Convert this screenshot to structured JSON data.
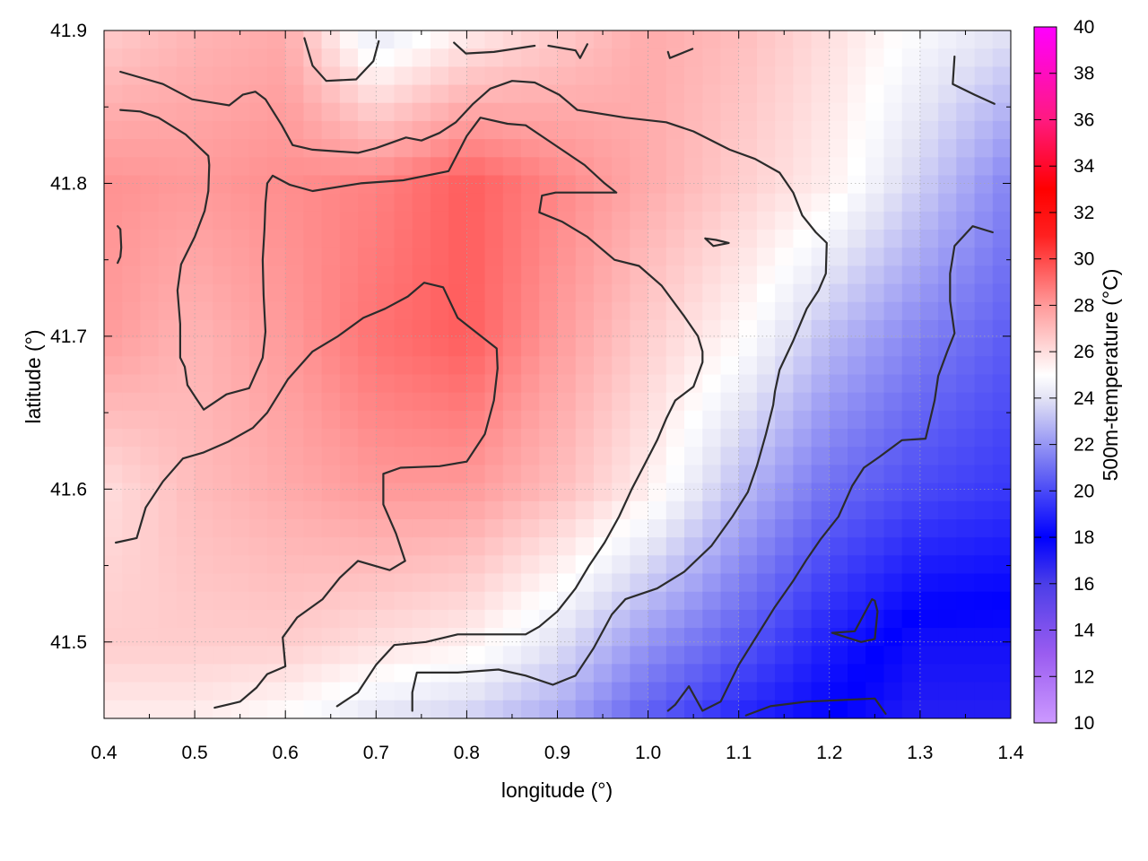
{
  "chart_data": {
    "type": "heatmap",
    "xlabel": "longitude (°)",
    "ylabel": "latitude (°)",
    "colorbar_label": "500m-temperature (°C)",
    "xlim": [
      0.4,
      1.4
    ],
    "ylim": [
      41.45,
      41.9
    ],
    "x_ticks": [
      "0.4",
      "0.5",
      "0.6",
      "0.7",
      "0.8",
      "0.9",
      "1.0",
      "1.1",
      "1.2",
      "1.3",
      "1.4"
    ],
    "y_ticks": [
      "41.5",
      "41.6",
      "41.7",
      "41.8",
      "41.9"
    ],
    "colorbar_range": [
      10,
      40
    ],
    "colorbar_ticks": [
      "10",
      "12",
      "14",
      "16",
      "18",
      "20",
      "22",
      "24",
      "26",
      "28",
      "30",
      "32",
      "34",
      "36",
      "38",
      "40"
    ],
    "colorbar_colors": [
      {
        "value": 10,
        "color": "#cc99ff"
      },
      {
        "value": 13,
        "color": "#9a5cf0"
      },
      {
        "value": 16,
        "color": "#4b3ee8"
      },
      {
        "value": 18,
        "color": "#0000ff"
      },
      {
        "value": 21,
        "color": "#6f6ff3"
      },
      {
        "value": 24,
        "color": "#e3e3f5"
      },
      {
        "value": 25,
        "color": "#ffffff"
      },
      {
        "value": 28,
        "color": "#ff9a9a"
      },
      {
        "value": 31,
        "color": "#ff2020"
      },
      {
        "value": 33,
        "color": "#ff0000"
      },
      {
        "value": 36,
        "color": "#ff1a80"
      },
      {
        "value": 40,
        "color": "#ff00ff"
      }
    ],
    "temperature_grid": {
      "x": [
        0.4,
        0.5,
        0.6,
        0.7,
        0.8,
        0.9,
        1.0,
        1.1,
        1.2,
        1.3,
        1.4
      ],
      "y": [
        41.9,
        41.8,
        41.7,
        41.6,
        41.5,
        41.45
      ],
      "values": [
        [
          26.5,
          27.2,
          27.5,
          24.0,
          25.5,
          26.5,
          27.5,
          27.0,
          26.0,
          24.8,
          24.0
        ],
        [
          28.2,
          28.0,
          28.3,
          28.6,
          29.5,
          28.5,
          27.5,
          26.5,
          25.5,
          23.5,
          21.5
        ],
        [
          28.0,
          27.2,
          28.0,
          29.0,
          29.5,
          28.0,
          26.5,
          25.2,
          23.0,
          21.5,
          20.5
        ],
        [
          26.0,
          27.0,
          27.5,
          28.0,
          28.0,
          27.0,
          25.5,
          23.0,
          21.0,
          20.0,
          19.5
        ],
        [
          26.5,
          26.5,
          26.5,
          26.0,
          25.5,
          24.0,
          22.0,
          20.5,
          18.8,
          17.5,
          17.5
        ],
        [
          25.5,
          25.5,
          25.0,
          24.0,
          23.5,
          22.5,
          20.5,
          19.0,
          18.0,
          17.0,
          17.0
        ]
      ]
    },
    "contours": [
      {
        "level": "outer-top",
        "points": [
          [
            0.418,
            41.873
          ],
          [
            0.465,
            41.865
          ],
          [
            0.497,
            41.855
          ],
          [
            0.538,
            41.851
          ],
          [
            0.553,
            41.858
          ],
          [
            0.567,
            41.86
          ],
          [
            0.578,
            41.855
          ],
          [
            0.596,
            41.838
          ],
          [
            0.608,
            41.825
          ],
          [
            0.63,
            41.822
          ],
          [
            0.68,
            41.82
          ],
          [
            0.7,
            41.823
          ],
          [
            0.733,
            41.83
          ],
          [
            0.75,
            41.828
          ],
          [
            0.77,
            41.833
          ],
          [
            0.788,
            41.84
          ],
          [
            0.807,
            41.852
          ],
          [
            0.826,
            41.862
          ],
          [
            0.85,
            41.867
          ],
          [
            0.875,
            41.866
          ],
          [
            0.902,
            41.858
          ],
          [
            0.922,
            41.848
          ],
          [
            0.975,
            41.843
          ],
          [
            1.02,
            41.84
          ],
          [
            1.05,
            41.834
          ],
          [
            1.09,
            41.822
          ],
          [
            1.118,
            41.816
          ],
          [
            1.145,
            41.807
          ],
          [
            1.16,
            41.794
          ],
          [
            1.17,
            41.779
          ],
          [
            1.185,
            41.768
          ],
          [
            1.197,
            41.761
          ],
          [
            1.196,
            41.741
          ],
          [
            1.188,
            41.73
          ],
          [
            1.175,
            41.718
          ],
          [
            1.16,
            41.697
          ],
          [
            1.145,
            41.678
          ],
          [
            1.14,
            41.664
          ],
          [
            1.138,
            41.655
          ],
          [
            1.13,
            41.636
          ],
          [
            1.12,
            41.615
          ],
          [
            1.11,
            41.598
          ],
          [
            1.093,
            41.582
          ],
          [
            1.07,
            41.563
          ],
          [
            1.04,
            41.546
          ],
          [
            1.01,
            41.535
          ],
          [
            0.975,
            41.528
          ],
          [
            0.96,
            41.518
          ],
          [
            0.94,
            41.496
          ],
          [
            0.92,
            41.478
          ],
          [
            0.895,
            41.472
          ],
          [
            0.865,
            41.478
          ],
          [
            0.835,
            41.482
          ],
          [
            0.79,
            41.48
          ],
          [
            0.77,
            41.48
          ],
          [
            0.745,
            41.48
          ],
          [
            0.74,
            41.467
          ],
          [
            0.74,
            41.455
          ]
        ]
      },
      {
        "level": "left-pocket",
        "points": [
          [
            0.418,
            41.848
          ],
          [
            0.44,
            41.847
          ],
          [
            0.46,
            41.843
          ],
          [
            0.49,
            41.832
          ],
          [
            0.515,
            41.818
          ],
          [
            0.516,
            41.812
          ],
          [
            0.515,
            41.795
          ],
          [
            0.511,
            41.782
          ],
          [
            0.5,
            41.765
          ],
          [
            0.485,
            41.747
          ],
          [
            0.481,
            41.73
          ],
          [
            0.484,
            41.708
          ],
          [
            0.484,
            41.686
          ],
          [
            0.489,
            41.68
          ],
          [
            0.492,
            41.668
          ],
          [
            0.502,
            41.659
          ],
          [
            0.51,
            41.652
          ],
          [
            0.535,
            41.662
          ],
          [
            0.56,
            41.666
          ],
          [
            0.575,
            41.686
          ],
          [
            0.578,
            41.703
          ],
          [
            0.576,
            41.727
          ],
          [
            0.575,
            41.75
          ],
          [
            0.577,
            41.77
          ],
          [
            0.578,
            41.787
          ],
          [
            0.58,
            41.8
          ],
          [
            0.586,
            41.805
          ],
          [
            0.605,
            41.799
          ],
          [
            0.63,
            41.795
          ],
          [
            0.683,
            41.8
          ],
          [
            0.73,
            41.802
          ],
          [
            0.78,
            41.808
          ],
          [
            0.8,
            41.831
          ],
          [
            0.815,
            41.843
          ],
          [
            0.845,
            41.839
          ],
          [
            0.865,
            41.838
          ],
          [
            0.895,
            41.826
          ],
          [
            0.93,
            41.812
          ],
          [
            0.952,
            41.8
          ],
          [
            0.965,
            41.794
          ],
          [
            0.92,
            41.794
          ],
          [
            0.898,
            41.794
          ],
          [
            0.883,
            41.792
          ],
          [
            0.88,
            41.781
          ],
          [
            0.905,
            41.775
          ],
          [
            0.933,
            41.765
          ],
          [
            0.963,
            41.75
          ],
          [
            0.99,
            41.746
          ],
          [
            1.015,
            41.733
          ],
          [
            1.04,
            41.713
          ],
          [
            1.055,
            41.7
          ],
          [
            1.06,
            41.69
          ],
          [
            1.06,
            41.683
          ],
          [
            1.05,
            41.667
          ],
          [
            1.03,
            41.658
          ],
          [
            1.02,
            41.646
          ],
          [
            1.01,
            41.632
          ],
          [
            0.996,
            41.616
          ],
          [
            0.982,
            41.6
          ],
          [
            0.968,
            41.582
          ],
          [
            0.952,
            41.565
          ],
          [
            0.935,
            41.55
          ],
          [
            0.92,
            41.535
          ],
          [
            0.9,
            41.52
          ],
          [
            0.88,
            41.51
          ],
          [
            0.865,
            41.505
          ],
          [
            0.84,
            41.505
          ],
          [
            0.79,
            41.505
          ],
          [
            0.755,
            41.5
          ],
          [
            0.72,
            41.498
          ],
          [
            0.7,
            41.485
          ],
          [
            0.68,
            41.467
          ],
          [
            0.657,
            41.458
          ]
        ]
      },
      {
        "level": "left-edge-small",
        "points": [
          [
            0.415,
            41.772
          ],
          [
            0.418,
            41.77
          ],
          [
            0.419,
            41.758
          ],
          [
            0.418,
            41.752
          ],
          [
            0.415,
            41.748
          ]
        ]
      },
      {
        "level": "central-high",
        "points": [
          [
            0.413,
            41.565
          ],
          [
            0.436,
            41.568
          ],
          [
            0.446,
            41.588
          ],
          [
            0.465,
            41.605
          ],
          [
            0.487,
            41.62
          ],
          [
            0.51,
            41.624
          ],
          [
            0.537,
            41.631
          ],
          [
            0.564,
            41.64
          ],
          [
            0.58,
            41.65
          ],
          [
            0.603,
            41.672
          ],
          [
            0.63,
            41.69
          ],
          [
            0.658,
            41.7
          ],
          [
            0.686,
            41.712
          ],
          [
            0.71,
            41.718
          ],
          [
            0.735,
            41.726
          ],
          [
            0.753,
            41.735
          ],
          [
            0.774,
            41.732
          ],
          [
            0.79,
            41.712
          ],
          [
            0.833,
            41.692
          ],
          [
            0.834,
            41.679
          ],
          [
            0.83,
            41.658
          ],
          [
            0.82,
            41.636
          ],
          [
            0.8,
            41.618
          ],
          [
            0.77,
            41.615
          ],
          [
            0.727,
            41.614
          ],
          [
            0.708,
            41.61
          ],
          [
            0.708,
            41.59
          ],
          [
            0.722,
            41.571
          ],
          [
            0.732,
            41.553
          ],
          [
            0.715,
            41.547
          ],
          [
            0.68,
            41.553
          ],
          [
            0.66,
            41.542
          ],
          [
            0.641,
            41.528
          ],
          [
            0.613,
            41.516
          ],
          [
            0.597,
            41.503
          ],
          [
            0.6,
            41.484
          ],
          [
            0.58,
            41.479
          ],
          [
            0.568,
            41.47
          ],
          [
            0.55,
            41.461
          ],
          [
            0.522,
            41.457
          ]
        ]
      },
      {
        "level": "small-diamond",
        "points": [
          [
            1.063,
            41.764
          ],
          [
            1.075,
            41.763
          ],
          [
            1.089,
            41.761
          ],
          [
            1.072,
            41.759
          ],
          [
            1.063,
            41.764
          ]
        ]
      },
      {
        "level": "top-left-arc",
        "points": [
          [
            0.621,
            41.895
          ],
          [
            0.63,
            41.877
          ],
          [
            0.645,
            41.867
          ],
          [
            0.678,
            41.868
          ],
          [
            0.697,
            41.88
          ],
          [
            0.703,
            41.893
          ]
        ]
      },
      {
        "level": "top-mid-arc",
        "points": [
          [
            0.786,
            41.892
          ],
          [
            0.799,
            41.885
          ],
          [
            0.83,
            41.886
          ],
          [
            0.875,
            41.89
          ]
        ]
      },
      {
        "level": "top-mid-arc2",
        "points": [
          [
            0.89,
            41.89
          ],
          [
            0.92,
            41.887
          ],
          [
            0.925,
            41.882
          ],
          [
            0.933,
            41.891
          ]
        ]
      },
      {
        "level": "top-right-tick",
        "points": [
          [
            1.022,
            41.886
          ],
          [
            1.024,
            41.882
          ],
          [
            1.049,
            41.888
          ]
        ]
      },
      {
        "level": "top-right-corner",
        "points": [
          [
            1.338,
            41.883
          ],
          [
            1.336,
            41.865
          ],
          [
            1.36,
            41.858
          ],
          [
            1.382,
            41.852
          ]
        ]
      },
      {
        "level": "blue-east",
        "points": [
          [
            1.38,
            41.768
          ],
          [
            1.358,
            41.772
          ],
          [
            1.338,
            41.759
          ],
          [
            1.333,
            41.741
          ],
          [
            1.333,
            41.723
          ],
          [
            1.338,
            41.702
          ],
          [
            1.33,
            41.69
          ],
          [
            1.32,
            41.674
          ],
          [
            1.316,
            41.658
          ],
          [
            1.306,
            41.633
          ],
          [
            1.28,
            41.632
          ],
          [
            1.255,
            41.621
          ],
          [
            1.238,
            41.614
          ],
          [
            1.225,
            41.602
          ],
          [
            1.21,
            41.582
          ],
          [
            1.19,
            41.567
          ],
          [
            1.175,
            41.554
          ],
          [
            1.16,
            41.54
          ],
          [
            1.14,
            41.523
          ],
          [
            1.12,
            41.504
          ],
          [
            1.1,
            41.485
          ],
          [
            1.08,
            41.461
          ],
          [
            1.06,
            41.455
          ],
          [
            1.045,
            41.471
          ],
          [
            1.03,
            41.459
          ],
          [
            1.022,
            41.455
          ]
        ]
      },
      {
        "level": "blue-core-triangle",
        "points": [
          [
            1.203,
            41.506
          ],
          [
            1.235,
            41.5
          ],
          [
            1.25,
            41.502
          ],
          [
            1.253,
            41.52
          ],
          [
            1.25,
            41.527
          ],
          [
            1.247,
            41.528
          ],
          [
            1.228,
            41.507
          ],
          [
            1.203,
            41.506
          ]
        ]
      },
      {
        "level": "blue-bottom",
        "points": [
          [
            1.108,
            41.452
          ],
          [
            1.135,
            41.458
          ],
          [
            1.175,
            41.461
          ],
          [
            1.25,
            41.463
          ],
          [
            1.262,
            41.453
          ]
        ]
      }
    ]
  }
}
